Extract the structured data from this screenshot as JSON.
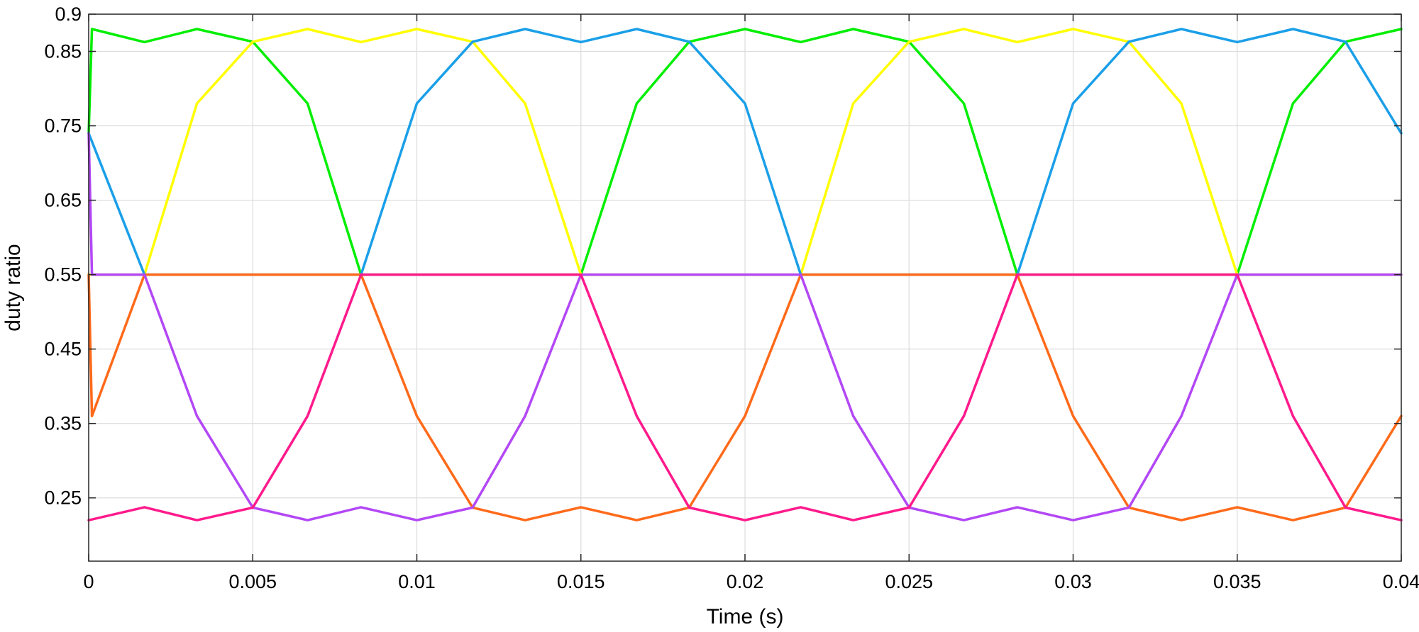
{
  "chart_data": {
    "type": "line",
    "title": "",
    "xlabel": "Time (s)",
    "ylabel": "duty ratio",
    "xlim": [
      0,
      0.04
    ],
    "ylim": [
      0.165,
      0.9
    ],
    "grid": true,
    "legend": "none",
    "x_ticks": [
      "0",
      "0.005",
      "0.01",
      "0.015",
      "0.02",
      "0.025",
      "0.03",
      "0.035",
      "0.04"
    ],
    "x_tick_values": [
      0,
      0.005,
      0.01,
      0.015,
      0.02,
      0.025,
      0.03,
      0.035,
      0.04
    ],
    "y_ticks": [
      "0.9",
      "0.85",
      "0.75",
      "0.65",
      "0.55",
      "0.45",
      "0.35",
      "0.25"
    ],
    "y_tick_values": [
      0.9,
      0.85,
      0.75,
      0.65,
      0.55,
      0.45,
      0.35,
      0.25
    ],
    "series": [
      {
        "color": "#00ee00",
        "x": [
          0,
          0.0001,
          0.0017,
          0.0033,
          0.005,
          0.00667,
          0.0083,
          0.0117,
          0.015,
          0.0167,
          0.0183,
          0.02,
          0.0217,
          0.0233,
          0.025,
          0.02667,
          0.0283,
          0.0317,
          0.035,
          0.0367,
          0.0383,
          0.04
        ],
        "y": [
          0.74,
          0.88,
          0.8625,
          0.88,
          0.863,
          0.78,
          0.55,
          0.55,
          0.55,
          0.78,
          0.863,
          0.88,
          0.8625,
          0.88,
          0.863,
          0.78,
          0.55,
          0.55,
          0.55,
          0.78,
          0.863,
          0.88
        ]
      },
      {
        "color": "#ffff00",
        "x": [
          0,
          0.0017,
          0.0033,
          0.005,
          0.00667,
          0.0083,
          0.01,
          0.0117,
          0.0133,
          0.015,
          0.0183,
          0.0217,
          0.0233,
          0.025,
          0.02667,
          0.0283,
          0.03,
          0.0317,
          0.0333,
          0.035,
          0.04
        ],
        "y": [
          0.55,
          0.55,
          0.78,
          0.863,
          0.88,
          0.8625,
          0.88,
          0.863,
          0.78,
          0.55,
          0.55,
          0.55,
          0.78,
          0.863,
          0.88,
          0.8625,
          0.88,
          0.863,
          0.78,
          0.55,
          0.55
        ]
      },
      {
        "color": "#1a9fe8",
        "x": [
          0,
          0.0017,
          0.005,
          0.0083,
          0.01,
          0.0117,
          0.0133,
          0.015,
          0.0167,
          0.0183,
          0.02,
          0.0217,
          0.025,
          0.0283,
          0.03,
          0.0317,
          0.0333,
          0.035,
          0.0367,
          0.0383,
          0.04
        ],
        "y": [
          0.74,
          0.55,
          0.55,
          0.55,
          0.78,
          0.863,
          0.88,
          0.8625,
          0.88,
          0.863,
          0.78,
          0.55,
          0.55,
          0.55,
          0.78,
          0.863,
          0.88,
          0.8625,
          0.88,
          0.863,
          0.74
        ]
      },
      {
        "color": "#ff6a1a",
        "x": [
          0,
          0.0001,
          0.0017,
          0.0083,
          0.01,
          0.0117,
          0.0133,
          0.015,
          0.0167,
          0.0183,
          0.02,
          0.0217,
          0.0283,
          0.03,
          0.0317,
          0.0333,
          0.035,
          0.0367,
          0.0383,
          0.04
        ],
        "y": [
          0.55,
          0.36,
          0.55,
          0.55,
          0.36,
          0.237,
          0.22,
          0.2375,
          0.22,
          0.237,
          0.36,
          0.55,
          0.55,
          0.36,
          0.237,
          0.22,
          0.2375,
          0.22,
          0.237,
          0.36
        ]
      },
      {
        "color": "#b347f5",
        "x": [
          0,
          0.0001,
          0.0017,
          0.0033,
          0.005,
          0.00667,
          0.0083,
          0.01,
          0.0117,
          0.0133,
          0.015,
          0.0217,
          0.0233,
          0.025,
          0.02667,
          0.0283,
          0.03,
          0.0317,
          0.0333,
          0.035,
          0.04
        ],
        "y": [
          0.74,
          0.55,
          0.55,
          0.36,
          0.237,
          0.22,
          0.2375,
          0.22,
          0.237,
          0.36,
          0.55,
          0.55,
          0.36,
          0.237,
          0.22,
          0.2375,
          0.22,
          0.237,
          0.36,
          0.55,
          0.55
        ]
      },
      {
        "color": "#ff1a8c",
        "x": [
          0,
          0.0017,
          0.0033,
          0.005,
          0.00667,
          0.0083,
          0.015,
          0.0167,
          0.0183,
          0.02,
          0.0217,
          0.0233,
          0.025,
          0.02667,
          0.0283,
          0.035,
          0.0367,
          0.0383,
          0.04
        ],
        "y": [
          0.22,
          0.2375,
          0.22,
          0.237,
          0.36,
          0.55,
          0.55,
          0.36,
          0.237,
          0.22,
          0.2375,
          0.22,
          0.237,
          0.36,
          0.55,
          0.55,
          0.36,
          0.237,
          0.22
        ]
      }
    ]
  }
}
